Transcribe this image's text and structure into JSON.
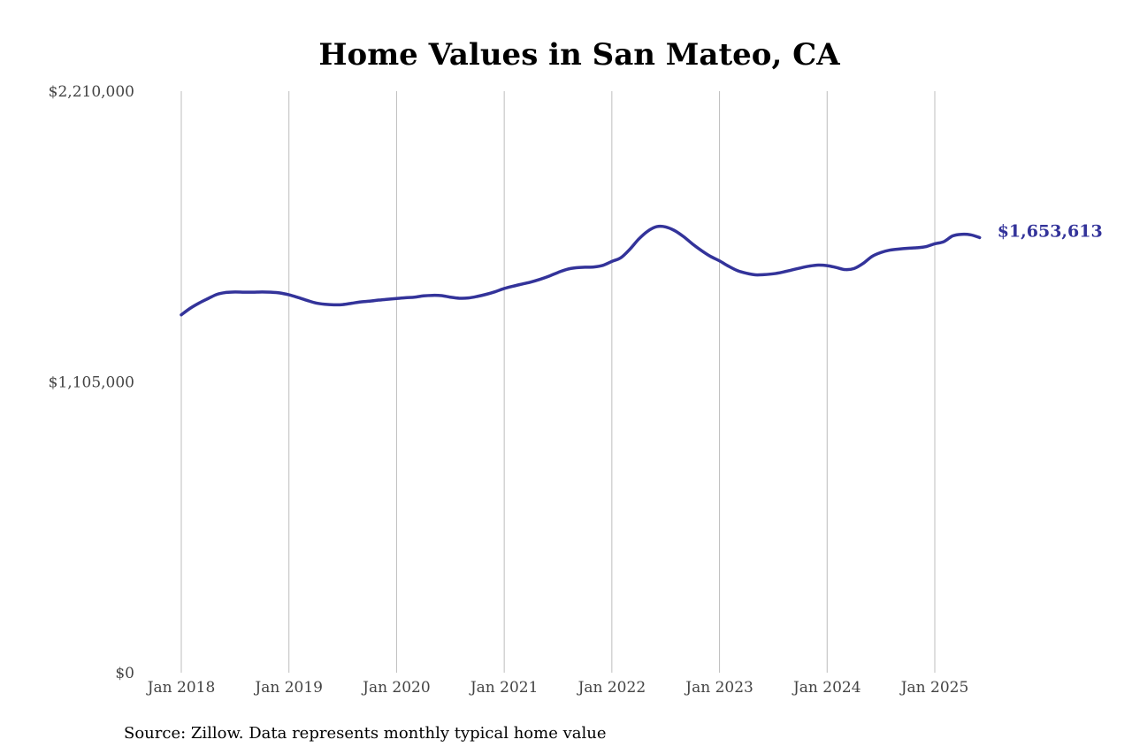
{
  "chart_data": {
    "type": "line",
    "title": "Home Values in San Mateo, CA",
    "xlabel": "",
    "ylabel": "",
    "ylim": [
      0,
      2210000
    ],
    "y_ticks": [
      {
        "value": 0,
        "label": "$0"
      },
      {
        "value": 1105000,
        "label": "$1,105,000"
      },
      {
        "value": 2210000,
        "label": "$2,210,000"
      }
    ],
    "x_range": [
      2018.0,
      2025.5
    ],
    "x_ticks": [
      {
        "value": 2018,
        "label": "Jan 2018"
      },
      {
        "value": 2019,
        "label": "Jan 2019"
      },
      {
        "value": 2020,
        "label": "Jan 2020"
      },
      {
        "value": 2021,
        "label": "Jan 2021"
      },
      {
        "value": 2022,
        "label": "Jan 2022"
      },
      {
        "value": 2023,
        "label": "Jan 2023"
      },
      {
        "value": 2024,
        "label": "Jan 2024"
      },
      {
        "value": 2025,
        "label": "Jan 2025"
      }
    ],
    "grid": "vertical lines at each January",
    "series": [
      {
        "color": "#33339a",
        "points": [
          [
            "2018-01",
            1360000
          ],
          [
            "2018-02",
            1385000
          ],
          [
            "2018-03",
            1405000
          ],
          [
            "2018-04",
            1422000
          ],
          [
            "2018-05",
            1438000
          ],
          [
            "2018-06",
            1445000
          ],
          [
            "2018-07",
            1447000
          ],
          [
            "2018-08",
            1446000
          ],
          [
            "2018-09",
            1446000
          ],
          [
            "2018-10",
            1447000
          ],
          [
            "2018-11",
            1446000
          ],
          [
            "2018-12",
            1443000
          ],
          [
            "2019-01",
            1436000
          ],
          [
            "2019-02",
            1426000
          ],
          [
            "2019-03",
            1415000
          ],
          [
            "2019-04",
            1405000
          ],
          [
            "2019-05",
            1400000
          ],
          [
            "2019-06",
            1398000
          ],
          [
            "2019-07",
            1399000
          ],
          [
            "2019-08",
            1404000
          ],
          [
            "2019-09",
            1409000
          ],
          [
            "2019-10",
            1412000
          ],
          [
            "2019-11",
            1416000
          ],
          [
            "2019-12",
            1419000
          ],
          [
            "2020-01",
            1422000
          ],
          [
            "2020-02",
            1425000
          ],
          [
            "2020-03",
            1427000
          ],
          [
            "2020-04",
            1432000
          ],
          [
            "2020-05",
            1434000
          ],
          [
            "2020-06",
            1433000
          ],
          [
            "2020-07",
            1427000
          ],
          [
            "2020-08",
            1423000
          ],
          [
            "2020-09",
            1424000
          ],
          [
            "2020-10",
            1430000
          ],
          [
            "2020-11",
            1438000
          ],
          [
            "2020-12",
            1448000
          ],
          [
            "2021-01",
            1460000
          ],
          [
            "2021-02",
            1469000
          ],
          [
            "2021-03",
            1477000
          ],
          [
            "2021-04",
            1485000
          ],
          [
            "2021-05",
            1495000
          ],
          [
            "2021-06",
            1507000
          ],
          [
            "2021-07",
            1521000
          ],
          [
            "2021-08",
            1533000
          ],
          [
            "2021-09",
            1539000
          ],
          [
            "2021-10",
            1541000
          ],
          [
            "2021-11",
            1542000
          ],
          [
            "2021-12",
            1548000
          ],
          [
            "2022-01",
            1563000
          ],
          [
            "2022-02",
            1577000
          ],
          [
            "2022-03",
            1609000
          ],
          [
            "2022-04",
            1648000
          ],
          [
            "2022-05",
            1678000
          ],
          [
            "2022-06",
            1695000
          ],
          [
            "2022-07",
            1694000
          ],
          [
            "2022-08",
            1680000
          ],
          [
            "2022-09",
            1657000
          ],
          [
            "2022-10",
            1629000
          ],
          [
            "2022-11",
            1604000
          ],
          [
            "2022-12",
            1582000
          ],
          [
            "2023-01",
            1565000
          ],
          [
            "2023-02",
            1545000
          ],
          [
            "2023-03",
            1528000
          ],
          [
            "2023-04",
            1518000
          ],
          [
            "2023-05",
            1512000
          ],
          [
            "2023-06",
            1513000
          ],
          [
            "2023-07",
            1516000
          ],
          [
            "2023-08",
            1522000
          ],
          [
            "2023-09",
            1530000
          ],
          [
            "2023-10",
            1538000
          ],
          [
            "2023-11",
            1545000
          ],
          [
            "2023-12",
            1549000
          ],
          [
            "2024-01",
            1547000
          ],
          [
            "2024-02",
            1540000
          ],
          [
            "2024-03",
            1532000
          ],
          [
            "2024-04",
            1536000
          ],
          [
            "2024-05",
            1555000
          ],
          [
            "2024-06",
            1582000
          ],
          [
            "2024-07",
            1597000
          ],
          [
            "2024-08",
            1606000
          ],
          [
            "2024-09",
            1610000
          ],
          [
            "2024-10",
            1613000
          ],
          [
            "2024-11",
            1615000
          ],
          [
            "2024-12",
            1619000
          ],
          [
            "2025-01",
            1630000
          ],
          [
            "2025-02",
            1638000
          ],
          [
            "2025-03",
            1660000
          ],
          [
            "2025-04",
            1666000
          ],
          [
            "2025-05",
            1664000
          ],
          [
            "2025-06",
            1653613
          ]
        ],
        "end_label": "$1,653,613"
      }
    ],
    "source_note": "Source: Zillow. Data represents monthly typical home value"
  }
}
